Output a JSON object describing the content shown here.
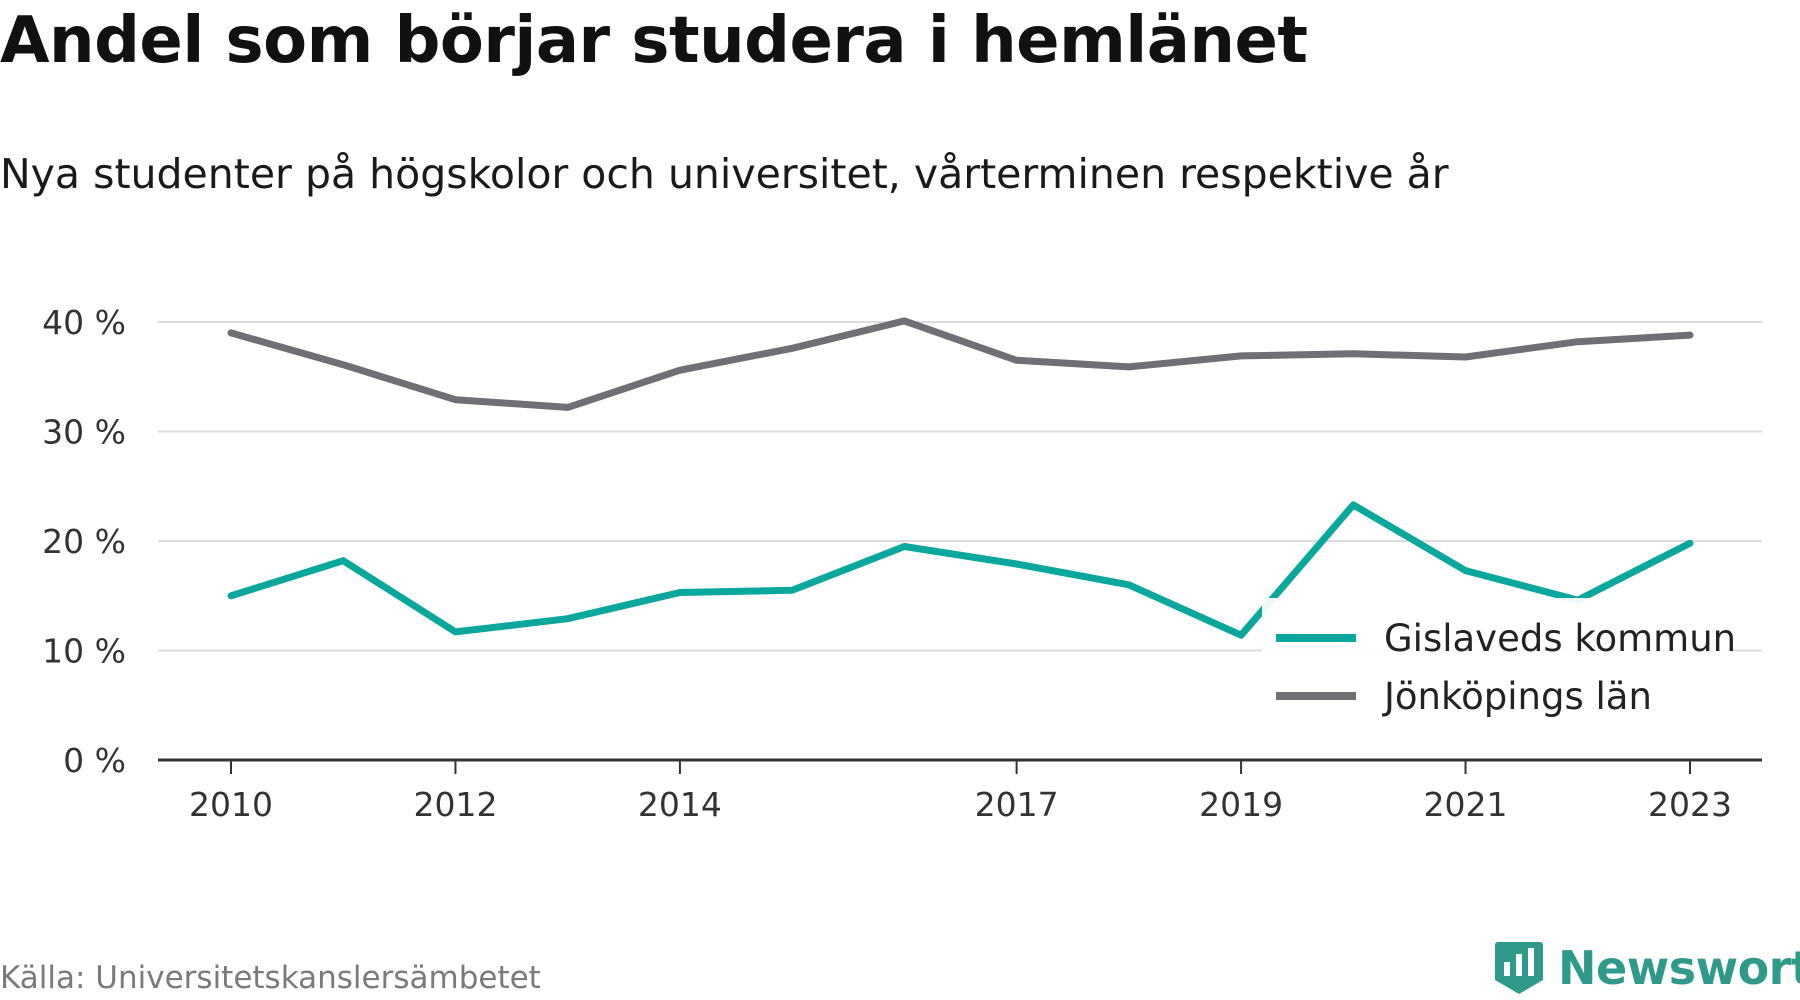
{
  "title": "Andel som börjar studera i hemlänet",
  "subtitle": "Nya studenter på högskolor och universitet, vårterminen respektive år",
  "source": "Källa: Universitetskanslersämbetet",
  "brand": {
    "name": "Newsworthy",
    "icon": "newsworthy-logo-icon",
    "color": "#2f9a8a"
  },
  "chart_data": {
    "type": "line",
    "x": [
      2010,
      2011,
      2012,
      2013,
      2014,
      2015,
      2016,
      2017,
      2018,
      2019,
      2020,
      2021,
      2022,
      2023
    ],
    "x_tick_labels": [
      "2010",
      "2012",
      "2014",
      "2017",
      "2019",
      "2021",
      "2023"
    ],
    "x_tick_values": [
      2010,
      2012,
      2014,
      2017,
      2019,
      2021,
      2023
    ],
    "y_ticks": [
      0,
      10,
      20,
      30,
      40
    ],
    "y_tick_labels": [
      "0 %",
      "10 %",
      "20 %",
      "30 %",
      "40 %"
    ],
    "ylim": [
      0,
      40
    ],
    "xlim": [
      2010,
      2023
    ],
    "grid": true,
    "legend_position": "bottom-right",
    "series": [
      {
        "name": "Gislaveds kommun",
        "color": "#0aa89c",
        "values": [
          15.0,
          18.2,
          11.7,
          12.9,
          15.3,
          15.5,
          19.5,
          17.9,
          16.0,
          11.4,
          23.3,
          17.3,
          14.6,
          19.8
        ]
      },
      {
        "name": "Jönköpings län",
        "color": "#6f6f75",
        "values": [
          39.0,
          36.1,
          32.9,
          32.2,
          35.6,
          37.6,
          40.1,
          36.5,
          35.9,
          36.9,
          37.1,
          36.8,
          38.2,
          38.8
        ]
      }
    ]
  }
}
